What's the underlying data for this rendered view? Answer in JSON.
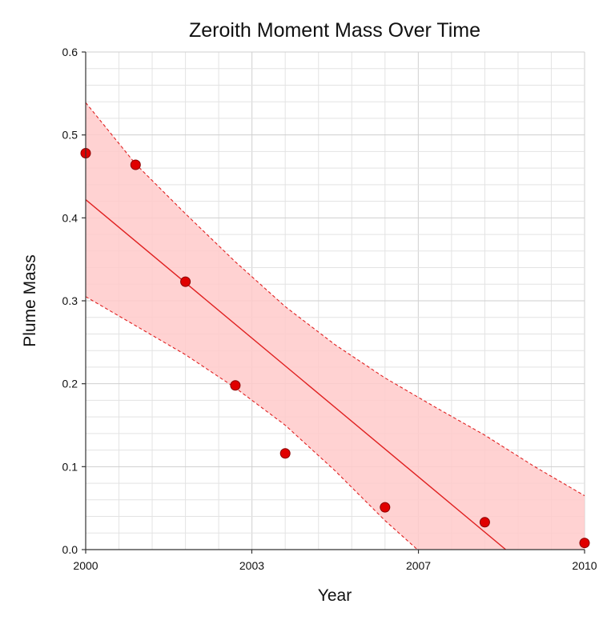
{
  "chart_data": {
    "type": "scatter",
    "title": "Zeroith Moment Mass Over Time",
    "xlabel": "Year",
    "ylabel": "Plume Mass",
    "xlim": [
      2000,
      2010
    ],
    "ylim": [
      0.0,
      0.6
    ],
    "x_ticks": [
      "2000",
      "2003",
      "2007",
      "2010"
    ],
    "x_tick_values": [
      2000,
      2003.33,
      2006.67,
      2010
    ],
    "y_ticks": [
      "0.0",
      "0.1",
      "0.2",
      "0.3",
      "0.4",
      "0.5",
      "0.6"
    ],
    "y_tick_values": [
      0.0,
      0.1,
      0.2,
      0.3,
      0.4,
      0.5,
      0.6
    ],
    "grid": true,
    "colors": {
      "point": "#e00000",
      "point_edge": "#8a0000",
      "band": "#ffcaca",
      "line": "#e02020"
    },
    "series": [
      {
        "type": "scatter",
        "x": [
          2000.0,
          2001.0,
          2002.0,
          2003.0,
          2004.0,
          2006.0,
          2008.0,
          2010.0
        ],
        "y": [
          0.478,
          0.464,
          0.323,
          0.198,
          0.116,
          0.051,
          0.033,
          0.008
        ]
      },
      {
        "type": "line",
        "x": [
          2000.0,
          2008.42
        ],
        "y": [
          0.422,
          0.0
        ]
      },
      {
        "type": "area",
        "x": [
          2000.0,
          2001.0,
          2002.0,
          2003.0,
          2004.0,
          2005.0,
          2006.0,
          2007.0,
          2008.0,
          2009.0,
          2010.0
        ],
        "upper": [
          0.539,
          0.465,
          0.405,
          0.347,
          0.293,
          0.247,
          0.207,
          0.172,
          0.138,
          0.1,
          0.065
        ],
        "lower": [
          0.305,
          0.27,
          0.235,
          0.195,
          0.15,
          0.095,
          0.035,
          null,
          null,
          null,
          null
        ],
        "lower_end_x": 2006.65
      }
    ]
  }
}
